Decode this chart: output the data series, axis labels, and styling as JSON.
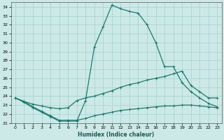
{
  "xlabel": "Humidex (Indice chaleur)",
  "xlim": [
    -0.5,
    23.5
  ],
  "ylim": [
    21,
    34.5
  ],
  "yticks": [
    21,
    22,
    23,
    24,
    25,
    26,
    27,
    28,
    29,
    30,
    31,
    32,
    33,
    34
  ],
  "xticks": [
    0,
    1,
    2,
    3,
    4,
    5,
    6,
    7,
    8,
    9,
    10,
    11,
    12,
    13,
    14,
    15,
    16,
    17,
    18,
    19,
    20,
    21,
    22,
    23
  ],
  "background_color": "#cce9e7",
  "grid_color": "#aad4d2",
  "line_color": "#1a7a6e",
  "series": [
    {
      "x": [
        0,
        1,
        2,
        3,
        4,
        5,
        6,
        7,
        8,
        9,
        10,
        11,
        12,
        13,
        14,
        15,
        16,
        17,
        18,
        19,
        20,
        21,
        22,
        23
      ],
      "y": [
        23.8,
        23.3,
        22.7,
        22.2,
        21.7,
        21.2,
        21.2,
        21.2,
        23.5,
        29.5,
        31.8,
        34.2,
        33.8,
        33.5,
        33.3,
        32.0,
        30.0,
        27.3,
        27.3,
        25.5,
        24.5,
        23.8,
        23.2,
        22.8
      ]
    },
    {
      "x": [
        0,
        1,
        2,
        3,
        4,
        5,
        6,
        7,
        8,
        9,
        10,
        11,
        12,
        13,
        14,
        15,
        16,
        17,
        18,
        19,
        20,
        21,
        22,
        23
      ],
      "y": [
        23.8,
        23.4,
        23.1,
        22.9,
        22.7,
        22.6,
        22.7,
        23.5,
        23.8,
        24.0,
        24.3,
        24.6,
        25.0,
        25.3,
        25.5,
        25.8,
        26.0,
        26.2,
        26.5,
        26.8,
        25.2,
        24.5,
        23.8,
        23.8
      ]
    },
    {
      "x": [
        0,
        1,
        2,
        3,
        4,
        5,
        6,
        7,
        8,
        9,
        10,
        11,
        12,
        13,
        14,
        15,
        16,
        17,
        18,
        19,
        20,
        21,
        22,
        23
      ],
      "y": [
        23.8,
        23.4,
        22.8,
        22.3,
        21.8,
        21.3,
        21.3,
        21.3,
        21.5,
        21.8,
        22.0,
        22.2,
        22.4,
        22.5,
        22.6,
        22.7,
        22.8,
        22.9,
        22.9,
        23.0,
        23.0,
        22.9,
        22.8,
        22.7
      ]
    }
  ],
  "marker": "+",
  "markersize": 3.5,
  "linewidth": 0.9
}
